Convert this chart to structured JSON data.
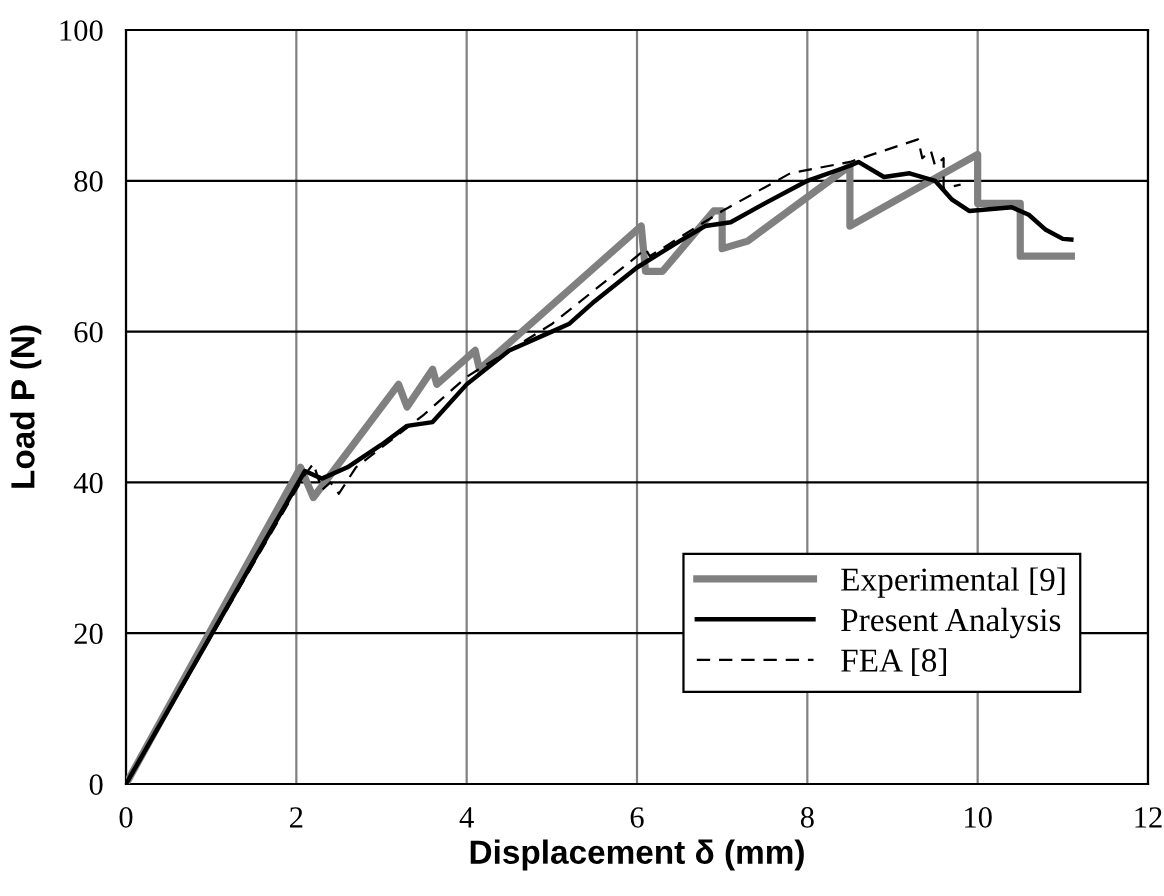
{
  "chart_data": {
    "type": "line",
    "xlabel": "Displacement δ (mm)",
    "ylabel": "Load P (N)",
    "xlim": [
      0,
      12
    ],
    "ylim": [
      0,
      100
    ],
    "xticks": [
      0,
      2,
      4,
      6,
      8,
      10,
      12
    ],
    "yticks": [
      0,
      20,
      40,
      60,
      80,
      100
    ],
    "grid": true,
    "legend": "bottom right",
    "marker": "none",
    "series": [
      {
        "name": "Experimental [9]",
        "color": "#808080",
        "line_style": "solid",
        "x": [
          0,
          2.05,
          2.2,
          3.2,
          3.3,
          3.6,
          3.65,
          4.1,
          4.15,
          6.05,
          6.1,
          6.3,
          6.9,
          7.0,
          7.0,
          7.3,
          8.5,
          8.5,
          10.0,
          10.0,
          10.5,
          10.5,
          11.1
        ],
        "values": [
          0,
          42,
          38,
          53,
          50,
          55,
          53,
          57.5,
          55,
          74,
          68,
          68,
          76,
          76,
          71,
          72,
          82,
          74,
          83.5,
          77,
          77,
          70,
          70
        ]
      },
      {
        "name": "Present Analysis",
        "color": "#000000",
        "line_style": "solid",
        "x": [
          0,
          2.1,
          2.3,
          2.6,
          3.0,
          3.3,
          3.6,
          4.0,
          4.5,
          5.0,
          5.2,
          5.5,
          6.0,
          6.5,
          6.8,
          7.1,
          7.5,
          8.0,
          8.5,
          8.6,
          8.9,
          9.2,
          9.5,
          9.7,
          9.9,
          10.4,
          10.6,
          10.8,
          11.0,
          11.1
        ],
        "values": [
          0,
          41.5,
          40.5,
          42,
          45,
          47.5,
          48,
          53,
          57.5,
          60,
          61,
          64,
          68.5,
          72,
          74,
          74.5,
          77,
          80,
          82,
          82.5,
          80.5,
          81,
          80,
          77.5,
          76,
          76.5,
          75.5,
          73.5,
          72.3,
          72.2
        ]
      },
      {
        "name": "FEA [8]",
        "color": "#000000",
        "line_style": "dashed",
        "x": [
          0,
          2.1,
          2.2,
          2.3,
          2.4,
          2.5,
          2.7,
          3.5,
          4.0,
          5.0,
          6.0,
          6.1,
          6.15,
          7.0,
          7.8,
          8.5,
          9.3,
          9.35,
          9.45,
          9.5,
          9.6,
          9.6,
          9.8
        ],
        "values": [
          0,
          41,
          42.5,
          39,
          40,
          38.5,
          42,
          49,
          54,
          61,
          70,
          71,
          70,
          76,
          81,
          82.5,
          85.5,
          83,
          84,
          82,
          83,
          79,
          79.5
        ]
      }
    ]
  }
}
